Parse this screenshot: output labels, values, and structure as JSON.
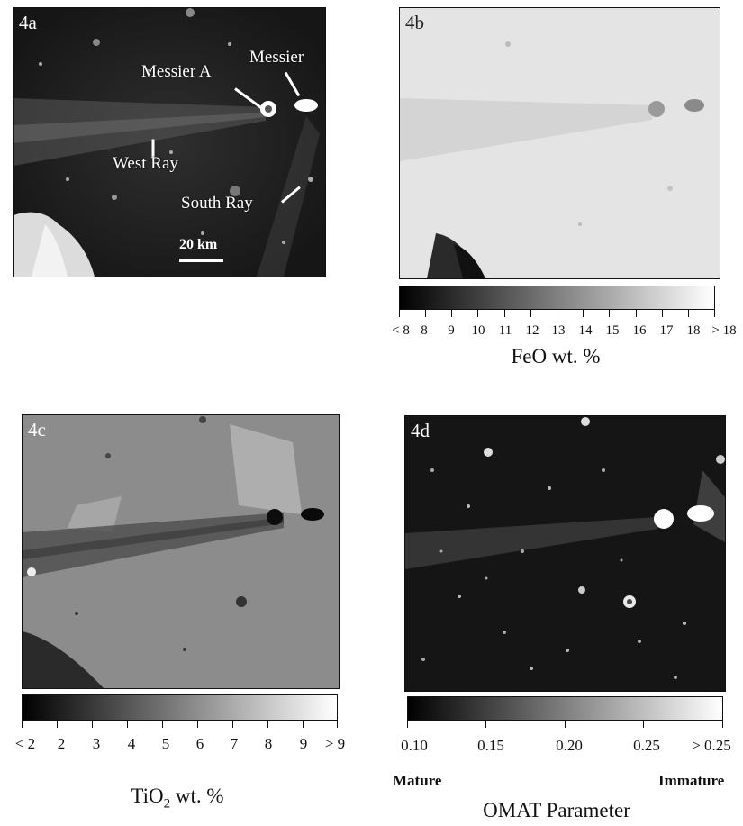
{
  "panel_a": {
    "label": "4a",
    "labels": {
      "messier_a": "Messier A",
      "messier": "Messier",
      "west_ray": "West Ray",
      "south_ray": "South Ray"
    },
    "scale_bar": "20 km"
  },
  "panel_b": {
    "label": "4b",
    "colorbar": {
      "ticks": [
        "< 8",
        "8",
        "9",
        "10",
        "11",
        "12",
        "13",
        "14",
        "15",
        "16",
        "17",
        "18",
        "> 18"
      ],
      "caption": "FeO wt. %"
    }
  },
  "panel_c": {
    "label": "4c",
    "colorbar": {
      "ticks": [
        "< 2",
        "2",
        "3",
        "4",
        "5",
        "6",
        "7",
        "8",
        "9",
        "> 9"
      ],
      "caption_main": "TiO",
      "caption_sub": "2",
      "caption_tail": " wt. %"
    }
  },
  "panel_d": {
    "label": "4d",
    "colorbar": {
      "ticks": [
        "0.10",
        "0.15",
        "0.20",
        "0.25",
        "> 0.25"
      ],
      "left_end": "Mature",
      "right_end": "Immature",
      "caption": "OMAT Parameter"
    }
  },
  "colors": {
    "dark_bg": "#1e1e1e",
    "light_bg": "#e6e6e6",
    "mid_bg": "#8a8a8a",
    "omat_bg": "#151515"
  }
}
